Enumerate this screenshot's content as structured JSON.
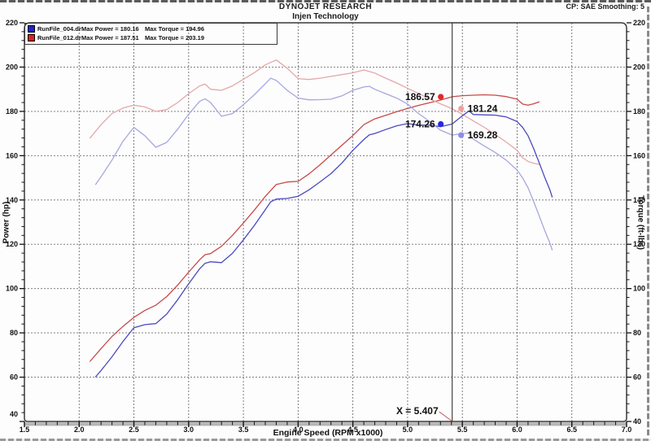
{
  "header": {
    "title": "DYNOJET RESEARCH",
    "subtitle": "Injen Technology",
    "right_info": "CP: SAE  Smoothing: 5"
  },
  "legend": {
    "rows": [
      {
        "file": "RunFile_004.drf",
        "power": "Max Power = 180.16",
        "torque": "Max Torque = 194.96",
        "color": "#2222cc"
      },
      {
        "file": "RunFile_012.drf",
        "power": "Max Power = 187.51",
        "torque": "Max Torque = 203.19",
        "color": "#dd2020"
      }
    ]
  },
  "chart_data": {
    "type": "line",
    "title": "DYNOJET RESEARCH",
    "subtitle": "Injen Technology",
    "xlabel": "Engine Speed (RPM x1000)",
    "ylabel_left": "Power (hp)",
    "ylabel_right": "Torque (ft-lbs)",
    "xlim": [
      1.5,
      7.0
    ],
    "ylim": [
      40,
      220
    ],
    "x_major_ticks": [
      1.5,
      2.0,
      2.5,
      3.0,
      3.5,
      4.0,
      4.5,
      5.0,
      5.5,
      6.0,
      6.5,
      7.0
    ],
    "x_tick_labels": [
      "1.5",
      "2.0",
      "2.5",
      "3.0",
      "3.5",
      "4.0",
      "4.5",
      "5.0",
      "5.5",
      "6.0",
      "6.5",
      "7.0"
    ],
    "y_major_ticks": [
      40,
      60,
      80,
      100,
      120,
      140,
      160,
      180,
      200,
      220
    ],
    "y_tick_labels": [
      "40",
      "60",
      "80",
      "100",
      "120",
      "140",
      "160",
      "180",
      "200",
      "220"
    ],
    "x_minor_step": 0.1,
    "y_minor_step": 4,
    "x_gridlines": [
      2.0,
      2.5,
      3.0,
      3.5,
      4.0,
      4.5,
      5.0,
      5.5,
      6.0,
      6.5
    ],
    "y_gridlines": [
      60,
      80,
      100,
      120,
      140,
      160,
      180,
      200
    ],
    "grid": true,
    "legend_position": "top-left",
    "cursor": {
      "x": 5.407,
      "label": "X = 5.407"
    },
    "series": [
      {
        "id": "runfile012-power",
        "name": "RunFile_012.drf Power (hp)",
        "color": "#c64a4a",
        "marker_color": "#e02828",
        "cursor_value": 186.57,
        "cursor_label": "186.57",
        "label_side": "left",
        "x": [
          2.1,
          2.2,
          2.3,
          2.4,
          2.5,
          2.6,
          2.7,
          2.8,
          2.9,
          3.0,
          3.1,
          3.15,
          3.2,
          3.3,
          3.4,
          3.5,
          3.6,
          3.7,
          3.8,
          3.9,
          4.0,
          4.1,
          4.2,
          4.3,
          4.4,
          4.5,
          4.6,
          4.7,
          4.8,
          4.9,
          5.0,
          5.1,
          5.2,
          5.3,
          5.407,
          5.5,
          5.6,
          5.7,
          5.8,
          5.9,
          6.0,
          6.05,
          6.1,
          6.15,
          6.2
        ],
        "y": [
          67.2,
          72.9,
          78.4,
          82.9,
          87.0,
          90.1,
          92.5,
          96.4,
          101.6,
          107.4,
          113.0,
          115.3,
          115.8,
          119.1,
          124.0,
          129.6,
          135.4,
          141.6,
          147.0,
          148.1,
          148.4,
          151.8,
          155.9,
          160.3,
          164.7,
          169.1,
          174.0,
          176.6,
          178.2,
          179.9,
          181.3,
          182.7,
          183.9,
          185.1,
          186.6,
          187.1,
          187.3,
          187.5,
          187.3,
          186.7,
          185.5,
          183.3,
          182.8,
          183.4,
          184.3
        ]
      },
      {
        "id": "runfile012-torque",
        "name": "RunFile_012.drf Torque (ft-lbs)",
        "color": "#e5a8a8",
        "marker_color": "#efa0a0",
        "cursor_value": 181.24,
        "cursor_label": "181.24",
        "label_side": "right",
        "x": [
          2.1,
          2.2,
          2.3,
          2.4,
          2.5,
          2.6,
          2.7,
          2.8,
          2.9,
          3.0,
          3.1,
          3.15,
          3.2,
          3.3,
          3.4,
          3.5,
          3.6,
          3.7,
          3.8,
          3.9,
          4.0,
          4.1,
          4.2,
          4.3,
          4.4,
          4.5,
          4.6,
          4.7,
          4.8,
          4.9,
          5.0,
          5.1,
          5.2,
          5.3,
          5.407,
          5.5,
          5.6,
          5.7,
          5.8,
          5.9,
          6.0,
          6.05,
          6.1,
          6.15,
          6.2
        ],
        "y": [
          168.0,
          174.0,
          179.0,
          181.5,
          182.8,
          182.0,
          180.0,
          180.8,
          184.0,
          188.0,
          191.5,
          192.3,
          190.0,
          189.5,
          191.5,
          194.5,
          197.5,
          201.0,
          203.2,
          199.5,
          194.8,
          194.4,
          195.0,
          195.8,
          196.6,
          197.4,
          198.7,
          197.3,
          195.0,
          192.8,
          190.4,
          188.1,
          185.7,
          183.4,
          181.2,
          178.7,
          175.7,
          172.8,
          169.6,
          166.2,
          162.4,
          159.1,
          157.4,
          156.6,
          156.1
        ]
      },
      {
        "id": "runfile004-power",
        "name": "RunFile_004.drf Power (hp)",
        "color": "#4a4ac0",
        "marker_color": "#2828dd",
        "cursor_value": 174.26,
        "cursor_label": "174.26",
        "label_side": "left",
        "x": [
          2.15,
          2.2,
          2.3,
          2.4,
          2.5,
          2.6,
          2.7,
          2.8,
          2.9,
          3.0,
          3.1,
          3.15,
          3.2,
          3.3,
          3.4,
          3.5,
          3.6,
          3.7,
          3.75,
          3.8,
          3.9,
          4.0,
          4.1,
          4.2,
          4.3,
          4.4,
          4.5,
          4.6,
          4.65,
          4.7,
          4.8,
          4.9,
          5.0,
          5.1,
          5.2,
          5.3,
          5.407,
          5.5,
          5.56,
          5.6,
          5.7,
          5.8,
          5.9,
          6.0,
          6.05,
          6.1,
          6.15,
          6.2,
          6.25,
          6.3,
          6.32
        ],
        "y": [
          60.2,
          63.0,
          69.2,
          76.1,
          82.3,
          83.7,
          84.2,
          88.5,
          95.0,
          102.1,
          108.9,
          111.4,
          112.1,
          111.7,
          115.9,
          122.0,
          128.5,
          135.6,
          139.2,
          140.4,
          140.7,
          141.7,
          144.6,
          148.2,
          151.9,
          156.7,
          162.4,
          167.3,
          169.4,
          170.0,
          171.8,
          173.5,
          174.5,
          173.8,
          173.8,
          173.1,
          174.3,
          178.0,
          180.2,
          178.6,
          178.4,
          178.3,
          177.5,
          175.4,
          172.8,
          169.0,
          163.4,
          157.0,
          150.5,
          144.5,
          141.4
        ]
      },
      {
        "id": "runfile004-torque",
        "name": "RunFile_004.drf Torque (ft-lbs)",
        "color": "#a6a6e0",
        "marker_color": "#8c8ceb",
        "cursor_value": 169.28,
        "cursor_label": "169.28",
        "label_side": "right",
        "x": [
          2.15,
          2.2,
          2.3,
          2.4,
          2.5,
          2.6,
          2.7,
          2.8,
          2.9,
          3.0,
          3.1,
          3.15,
          3.2,
          3.3,
          3.4,
          3.5,
          3.6,
          3.7,
          3.75,
          3.8,
          3.9,
          4.0,
          4.1,
          4.2,
          4.3,
          4.4,
          4.5,
          4.6,
          4.65,
          4.7,
          4.8,
          4.9,
          5.0,
          5.1,
          5.2,
          5.3,
          5.407,
          5.5,
          5.56,
          5.6,
          5.7,
          5.8,
          5.9,
          6.0,
          6.05,
          6.1,
          6.15,
          6.2,
          6.25,
          6.3,
          6.32
        ],
        "y": [
          147.0,
          150.5,
          158.0,
          166.5,
          172.8,
          169.0,
          163.8,
          166.0,
          172.0,
          178.7,
          184.5,
          185.7,
          184.0,
          177.8,
          179.0,
          183.0,
          187.5,
          192.5,
          195.0,
          194.0,
          189.5,
          186.0,
          185.2,
          185.3,
          185.5,
          187.0,
          189.5,
          191.0,
          191.3,
          190.0,
          188.0,
          186.0,
          183.3,
          179.0,
          175.5,
          171.5,
          169.3,
          170.0,
          170.2,
          167.5,
          164.4,
          161.5,
          158.0,
          153.5,
          150.0,
          145.5,
          139.5,
          133.0,
          126.5,
          120.5,
          117.5
        ]
      }
    ]
  }
}
